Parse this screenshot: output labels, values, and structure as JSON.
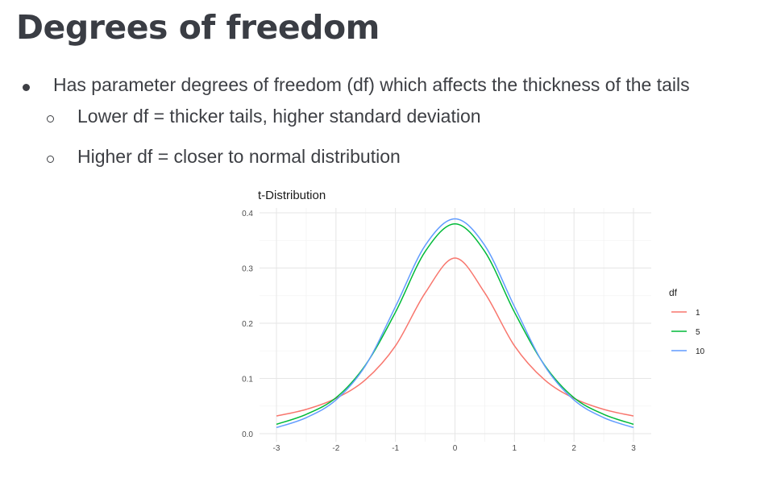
{
  "slide": {
    "title": "Degrees of freedom",
    "bullets": [
      {
        "level": 1,
        "text": "Has parameter degrees of freedom (df) which affects the thickness of the tails"
      },
      {
        "level": 2,
        "text": "Lower df = thicker tails, higher standard deviation"
      },
      {
        "level": 2,
        "text": "Higher df = closer to normal distribution"
      }
    ]
  },
  "chart_data": {
    "type": "line",
    "title": "t-Distribution",
    "xlabel": "",
    "ylabel": "",
    "xlim": [
      -3,
      3
    ],
    "ylim": [
      0,
      0.4
    ],
    "x_ticks": [
      "-3",
      "-2",
      "-1",
      "0",
      "1",
      "2",
      "3"
    ],
    "y_ticks": [
      "0.0",
      "0.1",
      "0.2",
      "0.3",
      "0.4"
    ],
    "grid": true,
    "legend": {
      "title": "df",
      "placement": "right"
    },
    "x": [
      -3,
      -2.5,
      -2,
      -1.5,
      -1,
      -0.5,
      0,
      0.5,
      1,
      1.5,
      2,
      2.5,
      3
    ],
    "series": [
      {
        "name": "1",
        "color": "#F8766D",
        "values": [
          0.032,
          0.044,
          0.064,
          0.098,
          0.159,
          0.255,
          0.318,
          0.255,
          0.159,
          0.098,
          0.064,
          0.044,
          0.032
        ]
      },
      {
        "name": "5",
        "color": "#00BA38",
        "values": [
          0.017,
          0.035,
          0.065,
          0.125,
          0.22,
          0.33,
          0.38,
          0.33,
          0.22,
          0.125,
          0.065,
          0.035,
          0.017
        ]
      },
      {
        "name": "10",
        "color": "#619CFF",
        "values": [
          0.011,
          0.029,
          0.061,
          0.124,
          0.23,
          0.341,
          0.389,
          0.341,
          0.23,
          0.124,
          0.061,
          0.029,
          0.011
        ]
      }
    ]
  }
}
